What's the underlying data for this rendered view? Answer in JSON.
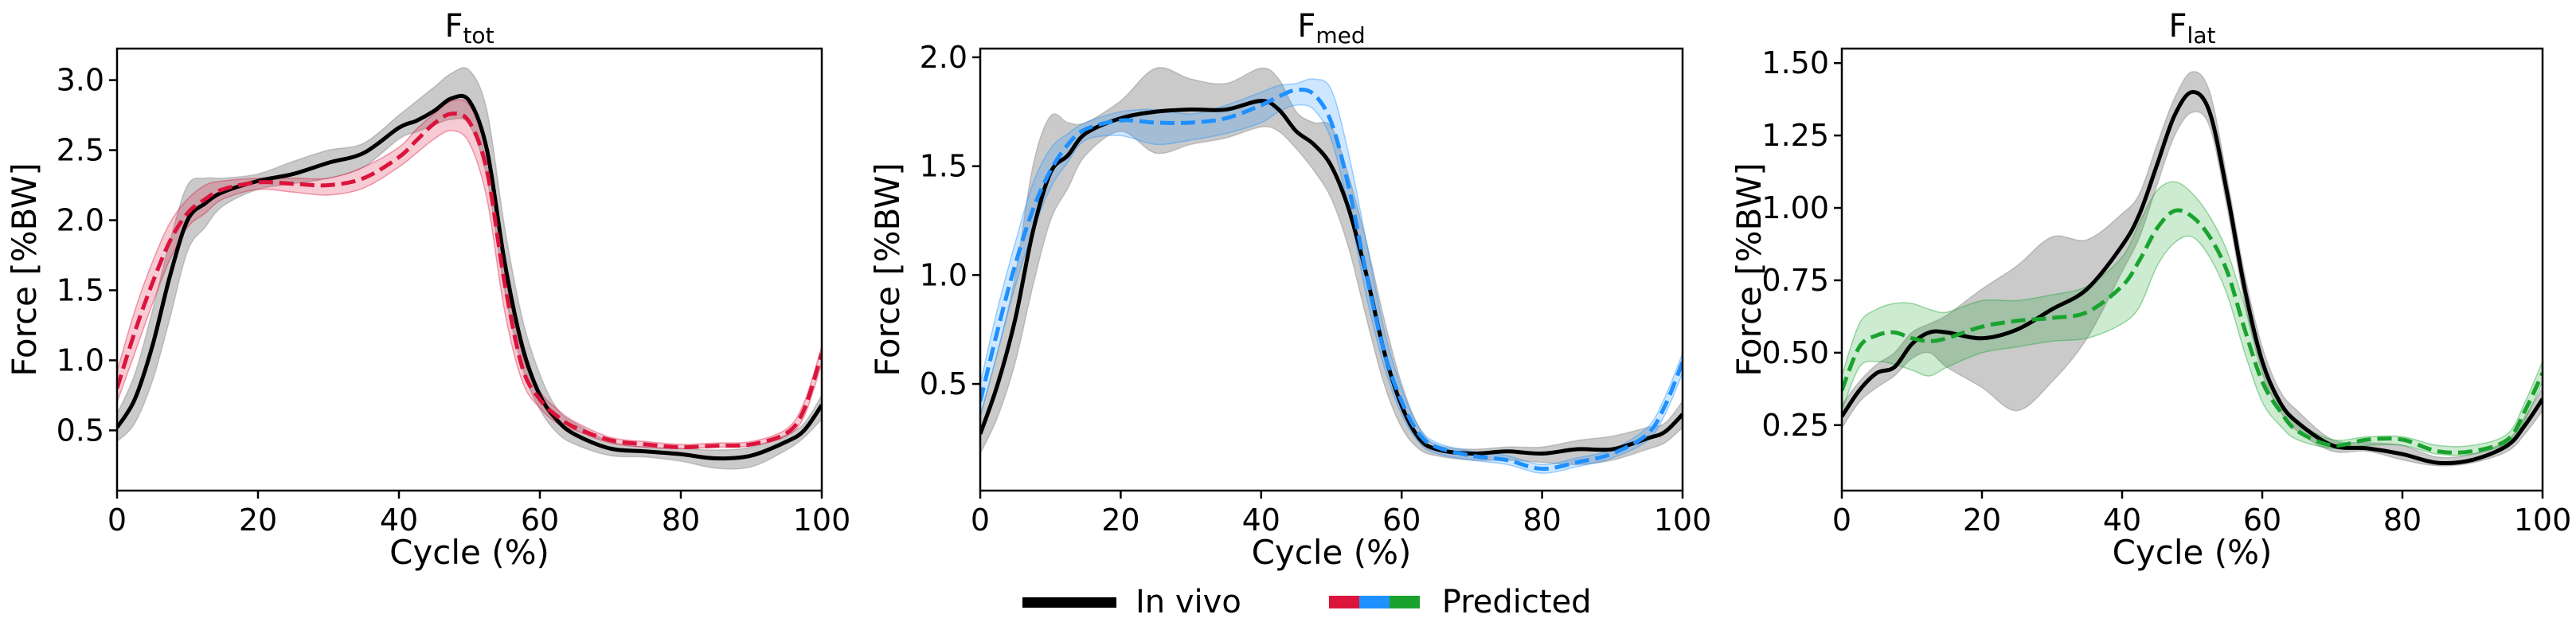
{
  "chart_data": [
    {
      "type": "line",
      "title_main": "F",
      "title_sub": "tot",
      "xlabel": "Cycle (%)",
      "ylabel": "Force [%BW]",
      "xlim": [
        0,
        100
      ],
      "ylim": [
        0.07,
        3.225
      ],
      "xticks": [
        0,
        20,
        40,
        60,
        80,
        100
      ],
      "yticks": [
        0.5,
        1.0,
        1.5,
        2.0,
        2.5,
        3.0
      ],
      "ytick_labels": [
        "0.5",
        "1.0",
        "1.5",
        "2.0",
        "2.5",
        "3.0"
      ],
      "pred_color": "#dc143c",
      "x": [
        0,
        2.5,
        5,
        7.5,
        10,
        12.5,
        15,
        20,
        25,
        30,
        35,
        40,
        42.5,
        45,
        47.5,
        50,
        52.5,
        55,
        57.5,
        60,
        62.5,
        65,
        70,
        75,
        80,
        85,
        90,
        95,
        97.5,
        100
      ],
      "series": [
        {
          "name": "In vivo",
          "style": "solid",
          "color": "#000000",
          "mean": [
            0.52,
            0.72,
            1.1,
            1.6,
            2.0,
            2.12,
            2.2,
            2.28,
            2.33,
            2.41,
            2.48,
            2.66,
            2.71,
            2.78,
            2.87,
            2.85,
            2.5,
            1.7,
            1.1,
            0.75,
            0.57,
            0.47,
            0.37,
            0.35,
            0.33,
            0.3,
            0.32,
            0.42,
            0.5,
            0.68
          ],
          "lower": [
            0.42,
            0.55,
            0.85,
            1.3,
            1.78,
            1.95,
            2.1,
            2.22,
            2.26,
            2.3,
            2.38,
            2.58,
            2.63,
            2.68,
            2.72,
            2.68,
            2.3,
            1.5,
            0.95,
            0.65,
            0.48,
            0.4,
            0.32,
            0.31,
            0.28,
            0.23,
            0.24,
            0.36,
            0.45,
            0.58
          ],
          "upper": [
            0.62,
            0.9,
            1.35,
            1.85,
            2.25,
            2.3,
            2.3,
            2.33,
            2.42,
            2.5,
            2.55,
            2.75,
            2.85,
            2.95,
            3.05,
            3.07,
            2.78,
            1.95,
            1.3,
            0.9,
            0.65,
            0.55,
            0.42,
            0.38,
            0.37,
            0.36,
            0.38,
            0.47,
            0.55,
            0.75
          ]
        },
        {
          "name": "Predicted",
          "style": "dashed",
          "color": "#dc143c",
          "mean": [
            0.8,
            1.2,
            1.55,
            1.85,
            2.05,
            2.15,
            2.22,
            2.27,
            2.26,
            2.25,
            2.3,
            2.45,
            2.57,
            2.69,
            2.76,
            2.7,
            2.35,
            1.55,
            0.95,
            0.72,
            0.6,
            0.52,
            0.43,
            0.4,
            0.38,
            0.39,
            0.4,
            0.48,
            0.65,
            1.05
          ],
          "lower": [
            0.7,
            1.05,
            1.4,
            1.72,
            1.95,
            2.05,
            2.15,
            2.22,
            2.2,
            2.18,
            2.23,
            2.38,
            2.48,
            2.58,
            2.64,
            2.55,
            2.15,
            1.35,
            0.85,
            0.66,
            0.55,
            0.5,
            0.41,
            0.38,
            0.37,
            0.38,
            0.39,
            0.46,
            0.6,
            0.98
          ],
          "upper": [
            0.92,
            1.35,
            1.7,
            1.98,
            2.15,
            2.25,
            2.28,
            2.3,
            2.3,
            2.3,
            2.38,
            2.52,
            2.65,
            2.76,
            2.85,
            2.82,
            2.5,
            1.7,
            1.05,
            0.78,
            0.65,
            0.56,
            0.45,
            0.42,
            0.4,
            0.41,
            0.42,
            0.51,
            0.7,
            1.1
          ]
        }
      ]
    },
    {
      "type": "line",
      "title_main": "F",
      "title_sub": "med",
      "xlabel": "Cycle (%)",
      "ylabel": "Force [%BW]",
      "xlim": [
        0,
        100
      ],
      "ylim": [
        0.01,
        2.04
      ],
      "xticks": [
        0,
        20,
        40,
        60,
        80,
        100
      ],
      "yticks": [
        0.5,
        1.0,
        1.5,
        2.0
      ],
      "ytick_labels": [
        "0.5",
        "1.0",
        "1.5",
        "2.0"
      ],
      "pred_color": "#1e90ff",
      "x": [
        0,
        2.5,
        5,
        7.5,
        10,
        12.5,
        15,
        20,
        25,
        30,
        35,
        40,
        42.5,
        45,
        47.5,
        50,
        52.5,
        55,
        57.5,
        60,
        62.5,
        65,
        70,
        75,
        80,
        85,
        90,
        95,
        97.5,
        100
      ],
      "series": [
        {
          "name": "In vivo",
          "style": "solid",
          "color": "#000000",
          "mean": [
            0.27,
            0.5,
            0.8,
            1.2,
            1.47,
            1.55,
            1.65,
            1.72,
            1.75,
            1.76,
            1.76,
            1.8,
            1.76,
            1.66,
            1.6,
            1.5,
            1.3,
            1.0,
            0.65,
            0.4,
            0.25,
            0.2,
            0.18,
            0.19,
            0.18,
            0.2,
            0.2,
            0.25,
            0.28,
            0.36
          ],
          "lower": [
            0.18,
            0.35,
            0.6,
            0.95,
            1.25,
            1.4,
            1.55,
            1.66,
            1.56,
            1.6,
            1.63,
            1.68,
            1.66,
            1.58,
            1.48,
            1.35,
            1.12,
            0.8,
            0.5,
            0.3,
            0.2,
            0.17,
            0.15,
            0.15,
            0.14,
            0.13,
            0.15,
            0.2,
            0.23,
            0.3
          ],
          "upper": [
            0.35,
            0.65,
            1.0,
            1.5,
            1.73,
            1.7,
            1.7,
            1.8,
            1.95,
            1.9,
            1.88,
            1.95,
            1.9,
            1.75,
            1.7,
            1.68,
            1.45,
            1.15,
            0.8,
            0.5,
            0.3,
            0.22,
            0.2,
            0.21,
            0.21,
            0.24,
            0.26,
            0.3,
            0.32,
            0.42
          ]
        },
        {
          "name": "Predicted",
          "style": "dashed",
          "color": "#1e90ff",
          "mean": [
            0.42,
            0.75,
            1.05,
            1.3,
            1.48,
            1.6,
            1.67,
            1.71,
            1.7,
            1.7,
            1.72,
            1.78,
            1.82,
            1.85,
            1.83,
            1.7,
            1.4,
            1.0,
            0.65,
            0.42,
            0.27,
            0.21,
            0.17,
            0.15,
            0.11,
            0.14,
            0.18,
            0.27,
            0.4,
            0.6
          ],
          "lower": [
            0.35,
            0.65,
            0.95,
            1.2,
            1.4,
            1.52,
            1.62,
            1.64,
            1.6,
            1.62,
            1.65,
            1.7,
            1.75,
            1.78,
            1.76,
            1.62,
            1.3,
            0.9,
            0.58,
            0.36,
            0.23,
            0.18,
            0.15,
            0.13,
            0.09,
            0.12,
            0.16,
            0.24,
            0.36,
            0.55
          ],
          "upper": [
            0.5,
            0.85,
            1.15,
            1.42,
            1.58,
            1.65,
            1.7,
            1.75,
            1.76,
            1.74,
            1.78,
            1.84,
            1.87,
            1.88,
            1.9,
            1.85,
            1.55,
            1.15,
            0.75,
            0.48,
            0.3,
            0.23,
            0.19,
            0.17,
            0.13,
            0.16,
            0.2,
            0.3,
            0.44,
            0.64
          ]
        }
      ]
    },
    {
      "type": "line",
      "title_main": "F",
      "title_sub": "lat",
      "xlabel": "Cycle (%)",
      "ylabel": "Force [%BW]",
      "xlim": [
        0,
        100
      ],
      "ylim": [
        0.024,
        1.55
      ],
      "xticks": [
        0,
        20,
        40,
        60,
        80,
        100
      ],
      "yticks": [
        0.25,
        0.5,
        0.75,
        1.0,
        1.25,
        1.5
      ],
      "ytick_labels": [
        "0.25",
        "0.50",
        "0.75",
        "1.00",
        "1.25",
        "1.50"
      ],
      "pred_color": "#19a32e",
      "x": [
        0,
        2.5,
        5,
        7.5,
        10,
        12.5,
        15,
        20,
        25,
        30,
        35,
        40,
        42.5,
        45,
        47.5,
        50,
        52.5,
        55,
        57.5,
        60,
        62.5,
        65,
        70,
        75,
        80,
        85,
        90,
        95,
        97.5,
        100
      ],
      "series": [
        {
          "name": "In vivo",
          "style": "solid",
          "color": "#000000",
          "mean": [
            0.28,
            0.37,
            0.43,
            0.45,
            0.53,
            0.57,
            0.57,
            0.55,
            0.58,
            0.65,
            0.72,
            0.87,
            0.98,
            1.15,
            1.32,
            1.4,
            1.33,
            1.05,
            0.72,
            0.47,
            0.33,
            0.26,
            0.18,
            0.17,
            0.15,
            0.12,
            0.13,
            0.18,
            0.25,
            0.34
          ],
          "lower": [
            0.24,
            0.33,
            0.38,
            0.42,
            0.48,
            0.5,
            0.45,
            0.38,
            0.3,
            0.4,
            0.55,
            0.78,
            0.9,
            1.08,
            1.25,
            1.33,
            1.28,
            1.0,
            0.67,
            0.43,
            0.3,
            0.23,
            0.16,
            0.16,
            0.13,
            0.11,
            0.12,
            0.16,
            0.22,
            0.3
          ],
          "upper": [
            0.32,
            0.4,
            0.46,
            0.5,
            0.57,
            0.6,
            0.63,
            0.72,
            0.8,
            0.9,
            0.89,
            0.98,
            1.05,
            1.22,
            1.38,
            1.47,
            1.4,
            1.1,
            0.77,
            0.52,
            0.37,
            0.3,
            0.2,
            0.19,
            0.18,
            0.14,
            0.15,
            0.2,
            0.28,
            0.38
          ]
        },
        {
          "name": "Predicted",
          "style": "dashed",
          "color": "#19a32e",
          "mean": [
            0.37,
            0.52,
            0.56,
            0.57,
            0.55,
            0.54,
            0.55,
            0.59,
            0.61,
            0.62,
            0.64,
            0.73,
            0.82,
            0.93,
            0.99,
            0.97,
            0.9,
            0.78,
            0.58,
            0.4,
            0.3,
            0.23,
            0.18,
            0.2,
            0.2,
            0.16,
            0.16,
            0.2,
            0.3,
            0.43
          ],
          "lower": [
            0.3,
            0.45,
            0.47,
            0.46,
            0.44,
            0.42,
            0.45,
            0.5,
            0.52,
            0.54,
            0.55,
            0.6,
            0.66,
            0.8,
            0.88,
            0.9,
            0.83,
            0.7,
            0.5,
            0.33,
            0.25,
            0.2,
            0.17,
            0.18,
            0.18,
            0.15,
            0.15,
            0.19,
            0.27,
            0.4
          ],
          "upper": [
            0.42,
            0.6,
            0.65,
            0.67,
            0.67,
            0.65,
            0.64,
            0.68,
            0.68,
            0.7,
            0.73,
            0.83,
            0.95,
            1.06,
            1.09,
            1.05,
            0.97,
            0.85,
            0.66,
            0.46,
            0.33,
            0.26,
            0.2,
            0.21,
            0.21,
            0.18,
            0.18,
            0.22,
            0.33,
            0.47
          ]
        }
      ]
    }
  ],
  "legend": {
    "invivo_label": "In vivo",
    "predicted_label": "Predicted",
    "predicted_colors": [
      "#dc143c",
      "#1e90ff",
      "#19a32e"
    ]
  }
}
